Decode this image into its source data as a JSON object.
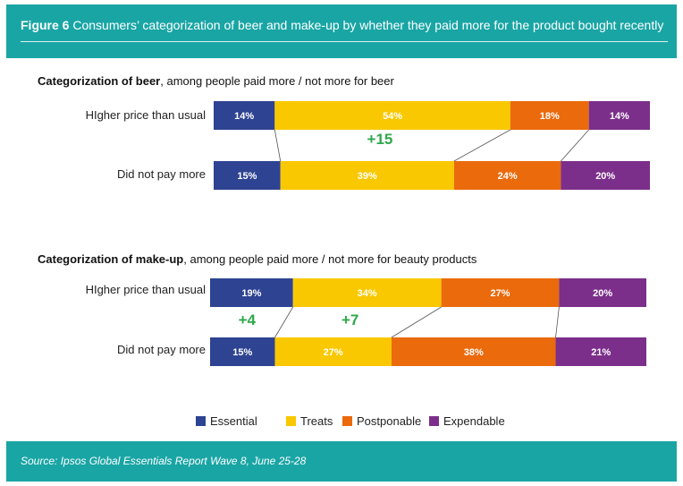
{
  "header": {
    "figure_label": "Figure 6",
    "title": "Consumers’ categorization of beer and make-up by whether they paid more for the product bought recently"
  },
  "footer": {
    "source": "Source: Ipsos Global Essentials Report Wave 8, June 25-28"
  },
  "colors": {
    "header_bg": "#1aa5a5",
    "essential": "#2e4392",
    "treats": "#f9c800",
    "postponable": "#ea6a0c",
    "expendable": "#7b2f8a",
    "delta": "#2ea84a"
  },
  "chart_data": [
    {
      "type": "bar",
      "orientation": "horizontal",
      "stacked": true,
      "title_bold": "Categorization of beer",
      "title_rest": ", among people paid more / not more for beer",
      "categories": [
        "HIgher price than usual",
        "Did not pay more"
      ],
      "series": [
        {
          "name": "Essential",
          "values": [
            14,
            15
          ]
        },
        {
          "name": "Treats",
          "values": [
            54,
            39
          ]
        },
        {
          "name": "Postponable",
          "values": [
            18,
            24
          ]
        },
        {
          "name": "Expendable",
          "values": [
            14,
            20
          ]
        }
      ],
      "value_labels": [
        [
          "14%",
          "54%",
          "18%",
          "14%"
        ],
        [
          "15%",
          "39%",
          "24%",
          "20%"
        ]
      ],
      "annotations": [
        {
          "text": "+15",
          "series": "Treats"
        }
      ]
    },
    {
      "type": "bar",
      "orientation": "horizontal",
      "stacked": true,
      "title_bold": "Categorization of make-up",
      "title_rest": ", among people paid more / not more for beauty products",
      "categories": [
        "HIgher price than usual",
        "Did not pay more"
      ],
      "series": [
        {
          "name": "Essential",
          "values": [
            19,
            15
          ]
        },
        {
          "name": "Treats",
          "values": [
            34,
            27
          ]
        },
        {
          "name": "Postponable",
          "values": [
            27,
            38
          ]
        },
        {
          "name": "Expendable",
          "values": [
            20,
            21
          ]
        }
      ],
      "value_labels": [
        [
          "19%",
          "34%",
          "27%",
          "20%"
        ],
        [
          "15%",
          "27%",
          "38%",
          "21%"
        ]
      ],
      "annotations": [
        {
          "text": "+4",
          "series": "Essential"
        },
        {
          "text": "+7",
          "series": "Treats"
        }
      ]
    }
  ],
  "legend": [
    {
      "name": "Essential",
      "color": "#2e4392"
    },
    {
      "name": "Treats",
      "color": "#f9c800"
    },
    {
      "name": "Postponable",
      "color": "#ea6a0c"
    },
    {
      "name": "Expendable",
      "color": "#7b2f8a"
    }
  ]
}
